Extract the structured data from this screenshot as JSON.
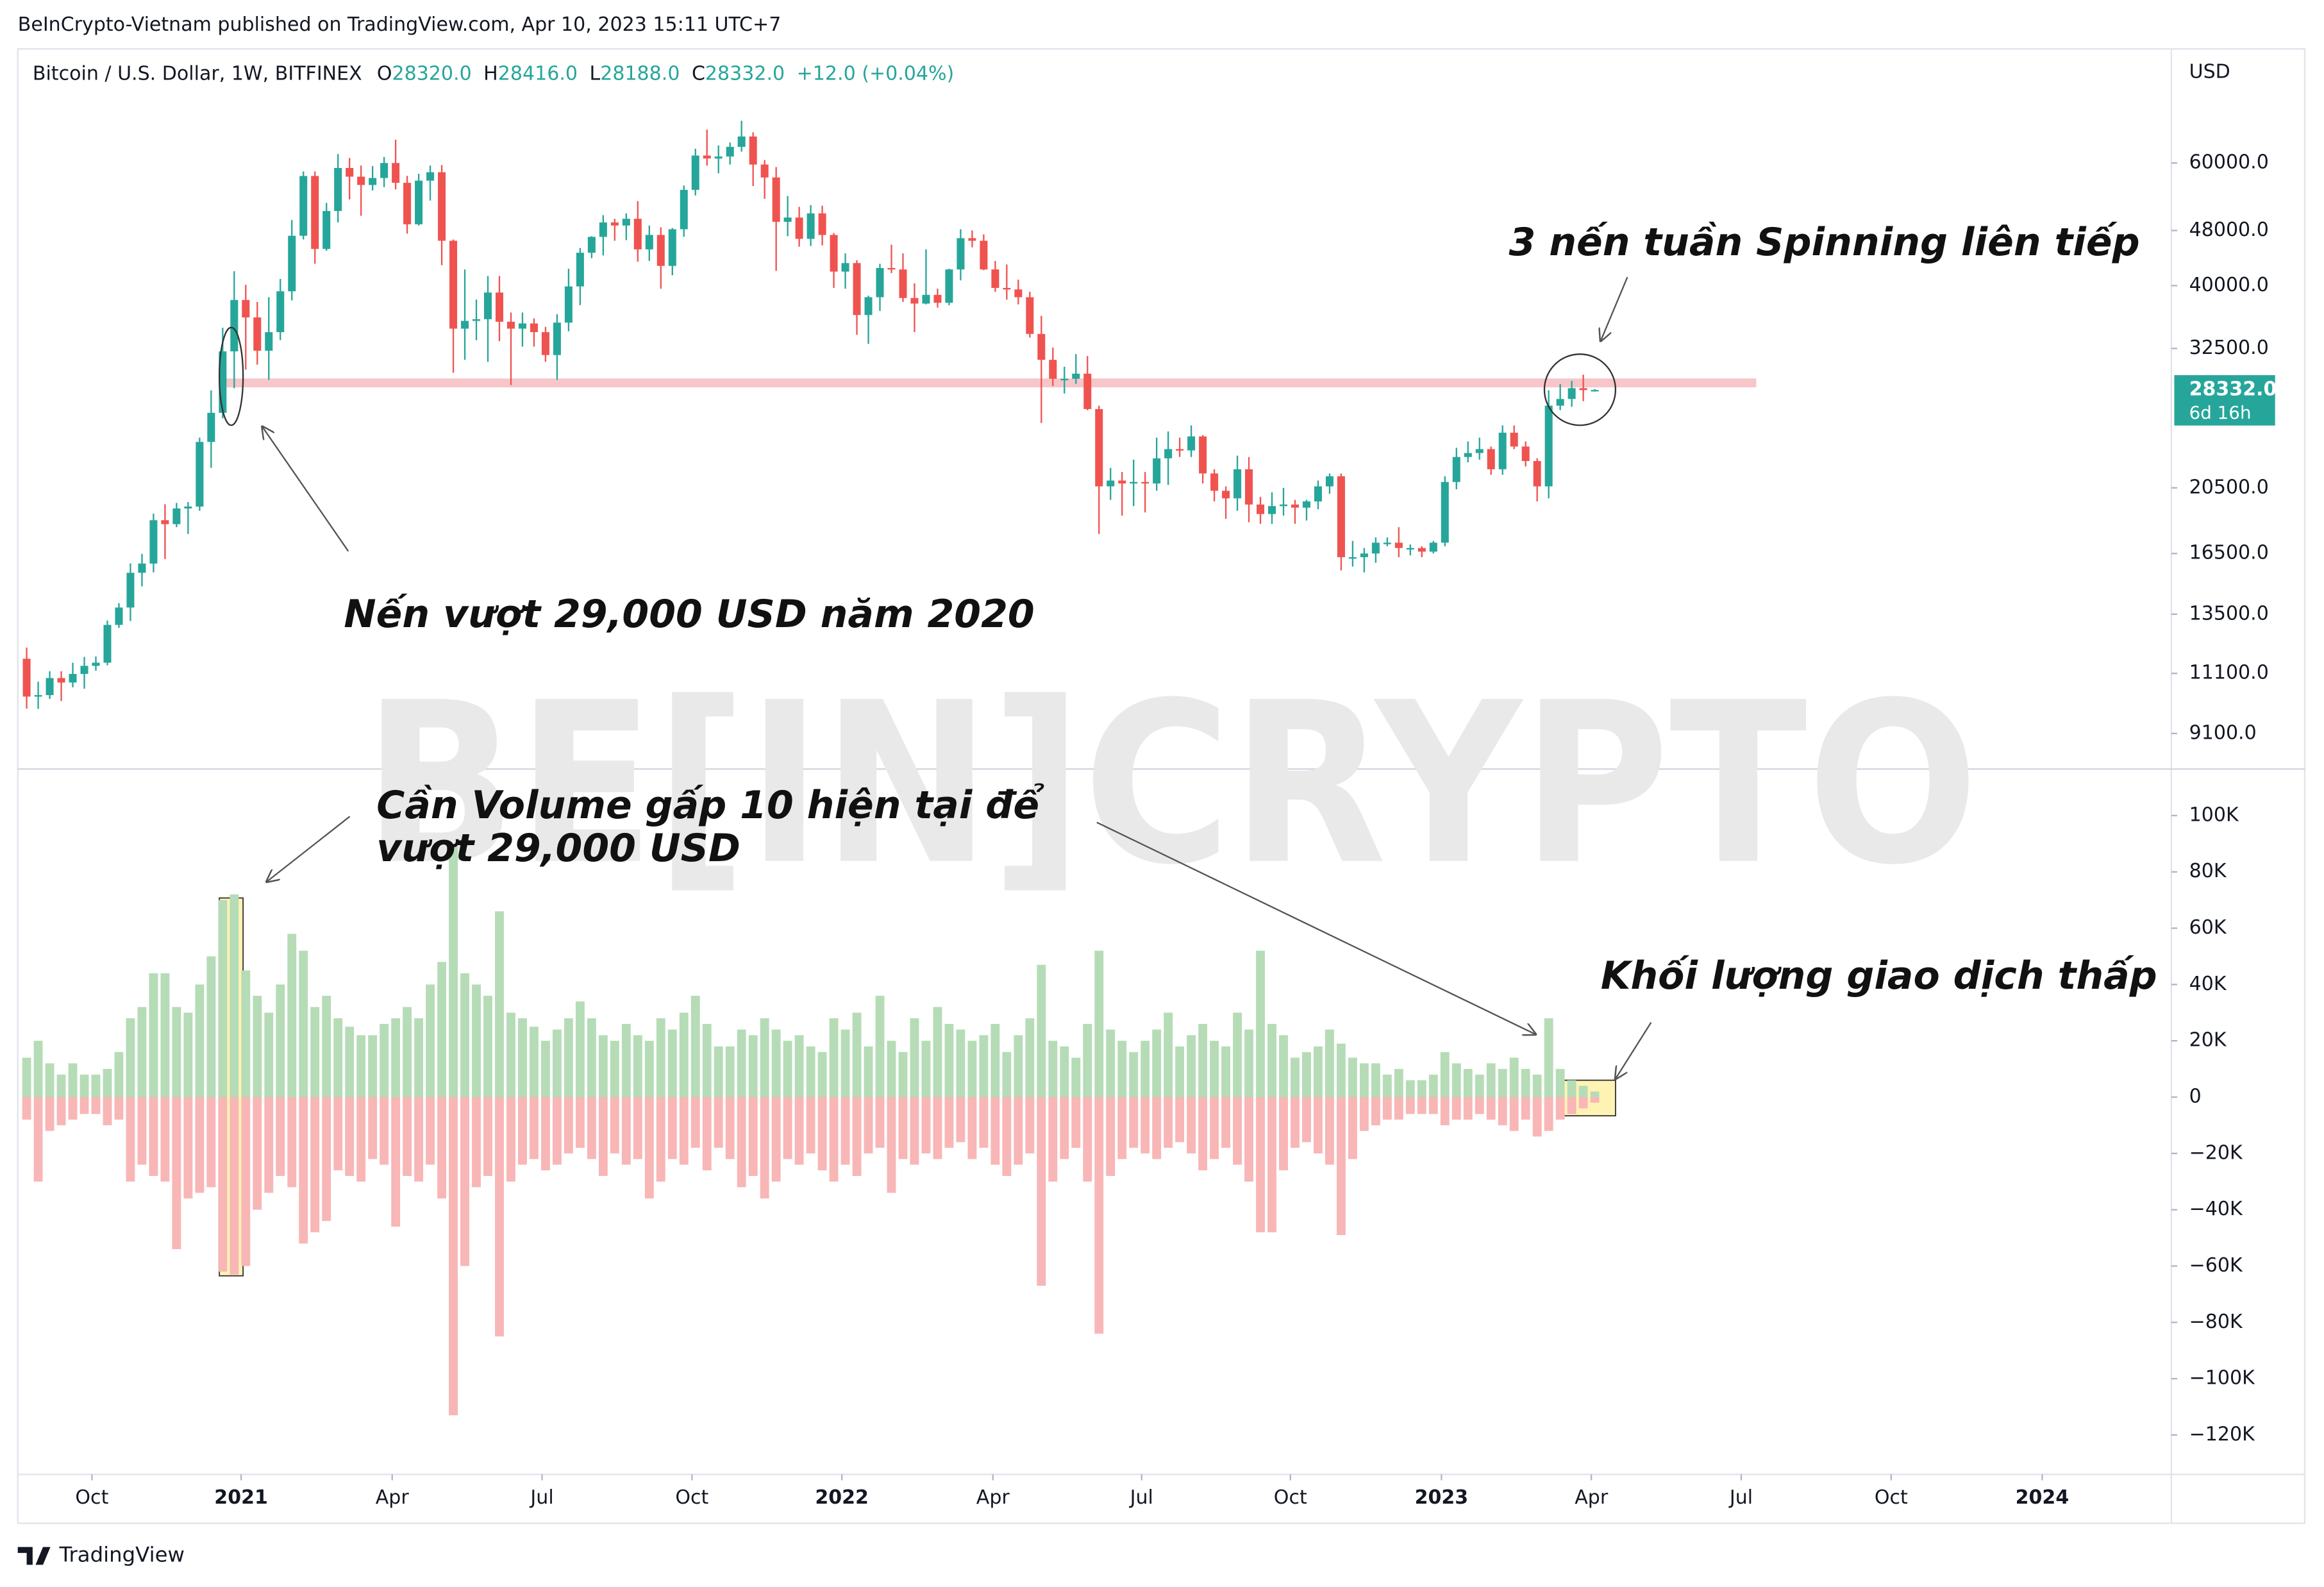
{
  "header": {
    "published": "BeInCrypto-Vietnam published on TradingView.com, Apr 10, 2023 15:11 UTC+7",
    "symbol": "Bitcoin / U.S. Dollar, 1W, BITFINEX",
    "ohlc": [
      {
        "key": "O",
        "value": "28320.0"
      },
      {
        "key": "H",
        "value": "28416.0"
      },
      {
        "key": "L",
        "value": "28188.0"
      },
      {
        "key": "C",
        "value": "28332.0"
      }
    ],
    "change": "+12.0 (+0.04%)"
  },
  "price_tag": {
    "price": "28332.0",
    "countdown": "6d 16h"
  },
  "currency": "USD",
  "watermark": "BE[IN]CRYPTO",
  "footer": "TradingView",
  "chart_data": [
    {
      "type": "candlestick",
      "log_scale": true,
      "up_color": "#26a69a",
      "down_color": "#ef5350",
      "xlim": [
        -0.77,
        186.0
      ],
      "ylim": [
        8130,
        87500
      ],
      "yticks": [
        {
          "value": 60000,
          "label": "60000.0"
        },
        {
          "value": 48000,
          "label": "48000.0"
        },
        {
          "value": 40000,
          "label": "40000.0"
        },
        {
          "value": 32500,
          "label": "32500.0"
        },
        {
          "value": 20500,
          "label": "20500.0"
        },
        {
          "value": 16500,
          "label": "16500.0"
        },
        {
          "value": 13500,
          "label": "13500.0"
        },
        {
          "value": 11100,
          "label": "11100.0"
        },
        {
          "value": 9100,
          "label": "9100.0"
        }
      ],
      "level": {
        "value": 29000,
        "color": "#f7c6c9"
      },
      "annotations": [
        "3 nến tuần Spinning liên tiếp",
        "Nến vượt 29,000 USD năm 2020"
      ],
      "open": [
        11650,
        10280,
        10330,
        10930,
        10770,
        11080,
        11380,
        11500,
        13030,
        13800,
        15480,
        15960,
        18420,
        18180,
        19150,
        19270,
        23860,
        26270,
        32190,
        38150,
        36010,
        32260,
        34300,
        39260,
        47170,
        57480,
        45160,
        51200,
        59020,
        57350,
        55800,
        57100,
        60000,
        56200,
        49000,
        56600,
        58200,
        46400,
        34700,
        35600,
        35800,
        39100,
        35500,
        34700,
        35300,
        34300,
        31800,
        35400,
        39900,
        44600,
        47000,
        49300,
        48800,
        49900,
        45100,
        47300,
        42700,
        48200,
        54900,
        61500,
        60900,
        61300,
        63300,
        65500,
        59700,
        57200,
        49400,
        50100,
        46700,
        50800,
        47300,
        41900,
        43100,
        36300,
        38500,
        42400,
        42200,
        38400,
        37700,
        38800,
        37800,
        42200,
        46800,
        46400,
        42200,
        39700,
        39500,
        38500,
        34100,
        31300,
        29400,
        29400,
        29900,
        26600,
        20600,
        21000,
        20800,
        20900,
        20800,
        22600,
        23300,
        23200,
        24300,
        21500,
        20300,
        19800,
        21800,
        19400,
        18800,
        19300,
        19400,
        19200,
        19600,
        20600,
        21300,
        16300,
        16300,
        16500,
        17100,
        17100,
        16800,
        16800,
        16600,
        17100,
        20900,
        22700,
        23000,
        23300,
        21800,
        24600,
        23500,
        22400,
        20600,
        26900,
        27500,
        28500,
        28320
      ],
      "high": [
        12090,
        10800,
        11180,
        11180,
        11500,
        11720,
        11740,
        13220,
        14000,
        15970,
        16480,
        18820,
        19420,
        19500,
        19560,
        24200,
        28300,
        34800,
        41950,
        40100,
        37900,
        38500,
        40900,
        49700,
        58350,
        58330,
        52600,
        61800,
        61000,
        59500,
        59400,
        61200,
        64800,
        57500,
        57900,
        59500,
        59600,
        46600,
        42200,
        38200,
        41300,
        41300,
        36600,
        36600,
        35900,
        34900,
        36400,
        42300,
        45300,
        47100,
        50500,
        49900,
        50800,
        52900,
        48800,
        48500,
        48400,
        55700,
        62900,
        67000,
        63600,
        64200,
        69000,
        66400,
        60600,
        59200,
        53800,
        51900,
        52200,
        52100,
        47600,
        44500,
        43500,
        38700,
        43000,
        45800,
        44500,
        40300,
        45100,
        39600,
        42300,
        48200,
        48000,
        47400,
        43400,
        42900,
        40800,
        39200,
        36200,
        32600,
        30600,
        31900,
        31700,
        26900,
        21900,
        21600,
        22500,
        21600,
        24200,
        24700,
        24200,
        25200,
        24400,
        21800,
        20600,
        22800,
        22700,
        19900,
        20200,
        20500,
        19700,
        19700,
        21000,
        21500,
        21500,
        17200,
        16800,
        17400,
        17400,
        18000,
        17000,
        16900,
        17200,
        21300,
        23400,
        23900,
        24200,
        23500,
        25200,
        25200,
        23900,
        22600,
        28300,
        28900,
        29200,
        29800,
        28416
      ],
      "low": [
        9880,
        9870,
        10200,
        10130,
        10600,
        10550,
        11200,
        11400,
        12900,
        13200,
        14800,
        15500,
        16200,
        18000,
        17600,
        19000,
        21900,
        25800,
        28500,
        30300,
        30800,
        29300,
        33400,
        38100,
        46600,
        43000,
        44900,
        49300,
        53200,
        50400,
        54800,
        55400,
        55000,
        47500,
        48800,
        53000,
        42800,
        30000,
        31300,
        33400,
        31100,
        33300,
        28800,
        32700,
        32700,
        31100,
        29300,
        34400,
        37500,
        43800,
        44200,
        46400,
        46500,
        43300,
        43400,
        39600,
        41400,
        47000,
        53900,
        59500,
        58000,
        59700,
        62300,
        55600,
        53300,
        42000,
        47100,
        45500,
        45600,
        45700,
        39700,
        39600,
        34000,
        33000,
        36800,
        41700,
        37900,
        34300,
        37600,
        37200,
        37500,
        40700,
        45400,
        42100,
        39200,
        38200,
        37600,
        33700,
        25400,
        28700,
        28000,
        28900,
        26500,
        17600,
        19700,
        18700,
        19300,
        18900,
        20300,
        20700,
        22700,
        22700,
        20800,
        19600,
        18500,
        19000,
        18300,
        18200,
        18200,
        18700,
        18200,
        18400,
        19100,
        20100,
        15600,
        15800,
        15500,
        16000,
        16900,
        16300,
        16400,
        16300,
        16500,
        16900,
        20400,
        22300,
        22500,
        21400,
        21400,
        23300,
        22000,
        19600,
        19800,
        26500,
        26800,
        27300,
        28188
      ],
      "close": [
        10280,
        10330,
        10930,
        10770,
        11080,
        11380,
        11500,
        13030,
        13800,
        15480,
        15960,
        18420,
        18180,
        19150,
        19270,
        23860,
        26270,
        32190,
        38150,
        36010,
        32260,
        34300,
        39260,
        47170,
        57480,
        45160,
        51200,
        59020,
        57350,
        55800,
        57100,
        60000,
        56200,
        49000,
        56600,
        58200,
        46400,
        34700,
        35600,
        35800,
        39100,
        35500,
        34700,
        35300,
        34300,
        31800,
        35400,
        39900,
        44600,
        47000,
        49300,
        48800,
        49900,
        45100,
        47300,
        42700,
        48200,
        54900,
        61500,
        60900,
        61300,
        63300,
        65500,
        59700,
        57200,
        49400,
        50100,
        46700,
        50800,
        47300,
        41900,
        43100,
        36300,
        38500,
        42400,
        42200,
        38400,
        37700,
        38800,
        37800,
        42200,
        46800,
        46400,
        42200,
        39700,
        39500,
        38500,
        34100,
        31300,
        29400,
        29400,
        29900,
        26600,
        20600,
        21000,
        20800,
        20900,
        20800,
        22600,
        23300,
        23200,
        24300,
        21500,
        20300,
        19800,
        21800,
        19400,
        18800,
        19300,
        19400,
        19200,
        19600,
        20600,
        21300,
        16300,
        16300,
        16500,
        17100,
        17100,
        16800,
        16800,
        16600,
        17100,
        20900,
        22700,
        23000,
        23300,
        21800,
        24600,
        23500,
        22400,
        20600,
        26900,
        27500,
        28500,
        28320,
        28332
      ]
    },
    {
      "type": "volume",
      "xlim": [
        -0.77,
        186.0
      ],
      "ylim": [
        -134000,
        116000
      ],
      "xticks": [
        {
          "value": 5.66,
          "label": "Oct"
        },
        {
          "value": 18.6,
          "label": "2021"
        },
        {
          "value": 31.7,
          "label": "Apr"
        },
        {
          "value": 44.7,
          "label": "Jul"
        },
        {
          "value": 57.7,
          "label": "Oct"
        },
        {
          "value": 70.7,
          "label": "2022"
        },
        {
          "value": 83.8,
          "label": "Apr"
        },
        {
          "value": 96.7,
          "label": "Jul"
        },
        {
          "value": 109.6,
          "label": "Oct"
        },
        {
          "value": 122.7,
          "label": "2023"
        },
        {
          "value": 135.7,
          "label": "Apr"
        },
        {
          "value": 148.7,
          "label": "Jul"
        },
        {
          "value": 161.7,
          "label": "Oct"
        },
        {
          "value": 174.8,
          "label": "2024"
        }
      ],
      "yticks": [
        {
          "value": 100000,
          "label": "100K"
        },
        {
          "value": 80000,
          "label": "80K"
        },
        {
          "value": 60000,
          "label": "60K"
        },
        {
          "value": 40000,
          "label": "40K"
        },
        {
          "value": 20000,
          "label": "20K"
        },
        0,
        {
          "value": -20000,
          "label": "−20K"
        },
        {
          "value": -40000,
          "label": "−40K"
        },
        {
          "value": -60000,
          "label": "−60K"
        },
        {
          "value": -80000,
          "label": "−80K"
        },
        {
          "value": -100000,
          "label": "−100K"
        },
        {
          "value": -120000,
          "label": "−120K"
        }
      ],
      "annotations": [
        "Cần Volume gấp 10 hiện tại để",
        "vượt 29,000 USD",
        "Khối lượng giao dịch thấp"
      ],
      "series": [
        {
          "color": "#b5dcb6",
          "values": [
            14000,
            20000,
            12000,
            8000,
            12000,
            8000,
            8000,
            10000,
            16000,
            28000,
            32000,
            44000,
            44000,
            32000,
            30000,
            40000,
            50000,
            70000,
            72000,
            45000,
            36000,
            30000,
            40000,
            58000,
            52000,
            32000,
            36000,
            28000,
            25000,
            22000,
            22000,
            26000,
            28000,
            32000,
            28000,
            40000,
            48000,
            90000,
            44000,
            40000,
            36000,
            66000,
            30000,
            28000,
            25000,
            20000,
            24000,
            28000,
            34000,
            28000,
            22000,
            20000,
            26000,
            22000,
            20000,
            28000,
            24000,
            30000,
            36000,
            26000,
            18000,
            18000,
            24000,
            22000,
            28000,
            24000,
            20000,
            22000,
            18000,
            16000,
            28000,
            24000,
            30000,
            18000,
            36000,
            20000,
            16000,
            28000,
            20000,
            32000,
            26000,
            24000,
            20000,
            22000,
            26000,
            16000,
            22000,
            28000,
            47000,
            20000,
            18000,
            14000,
            26000,
            52000,
            24000,
            20000,
            16000,
            20000,
            24000,
            30000,
            18000,
            22000,
            26000,
            20000,
            18000,
            30000,
            24000,
            52000,
            26000,
            22000,
            14000,
            16000,
            18000,
            24000,
            19000,
            14000,
            12000,
            12000,
            8000,
            10000,
            6000,
            6000,
            8000,
            16000,
            12000,
            10000,
            8000,
            12000,
            10000,
            14000,
            10000,
            8000,
            28000,
            10000,
            6000,
            4000,
            2000
          ]
        },
        {
          "color": "#f8b6b6",
          "values": [
            -8000,
            -30000,
            -12000,
            -10000,
            -8000,
            -6000,
            -6000,
            -10000,
            -8000,
            -30000,
            -24000,
            -28000,
            -30000,
            -54000,
            -36000,
            -34000,
            -32000,
            -62000,
            -63000,
            -60000,
            -40000,
            -34000,
            -28000,
            -32000,
            -52000,
            -48000,
            -44000,
            -26000,
            -28000,
            -30000,
            -22000,
            -24000,
            -46000,
            -28000,
            -30000,
            -24000,
            -36000,
            -113000,
            -60000,
            -32000,
            -28000,
            -85000,
            -30000,
            -24000,
            -22000,
            -26000,
            -24000,
            -20000,
            -18000,
            -22000,
            -28000,
            -20000,
            -24000,
            -22000,
            -36000,
            -30000,
            -22000,
            -24000,
            -18000,
            -26000,
            -18000,
            -22000,
            -32000,
            -28000,
            -36000,
            -30000,
            -22000,
            -24000,
            -20000,
            -26000,
            -30000,
            -24000,
            -28000,
            -20000,
            -18000,
            -34000,
            -22000,
            -24000,
            -20000,
            -22000,
            -18000,
            -16000,
            -22000,
            -18000,
            -24000,
            -28000,
            -24000,
            -20000,
            -67000,
            -30000,
            -22000,
            -18000,
            -30000,
            -84000,
            -28000,
            -22000,
            -18000,
            -20000,
            -22000,
            -18000,
            -16000,
            -20000,
            -26000,
            -22000,
            -18000,
            -24000,
            -30000,
            -48000,
            -48000,
            -26000,
            -18000,
            -16000,
            -20000,
            -24000,
            -49000,
            -22000,
            -12000,
            -10000,
            -8000,
            -8000,
            -6000,
            -6000,
            -6000,
            -10000,
            -8000,
            -8000,
            -6000,
            -8000,
            -10000,
            -12000,
            -8000,
            -14000,
            -12000,
            -8000,
            -6000,
            -4000,
            -2000
          ]
        }
      ]
    }
  ]
}
